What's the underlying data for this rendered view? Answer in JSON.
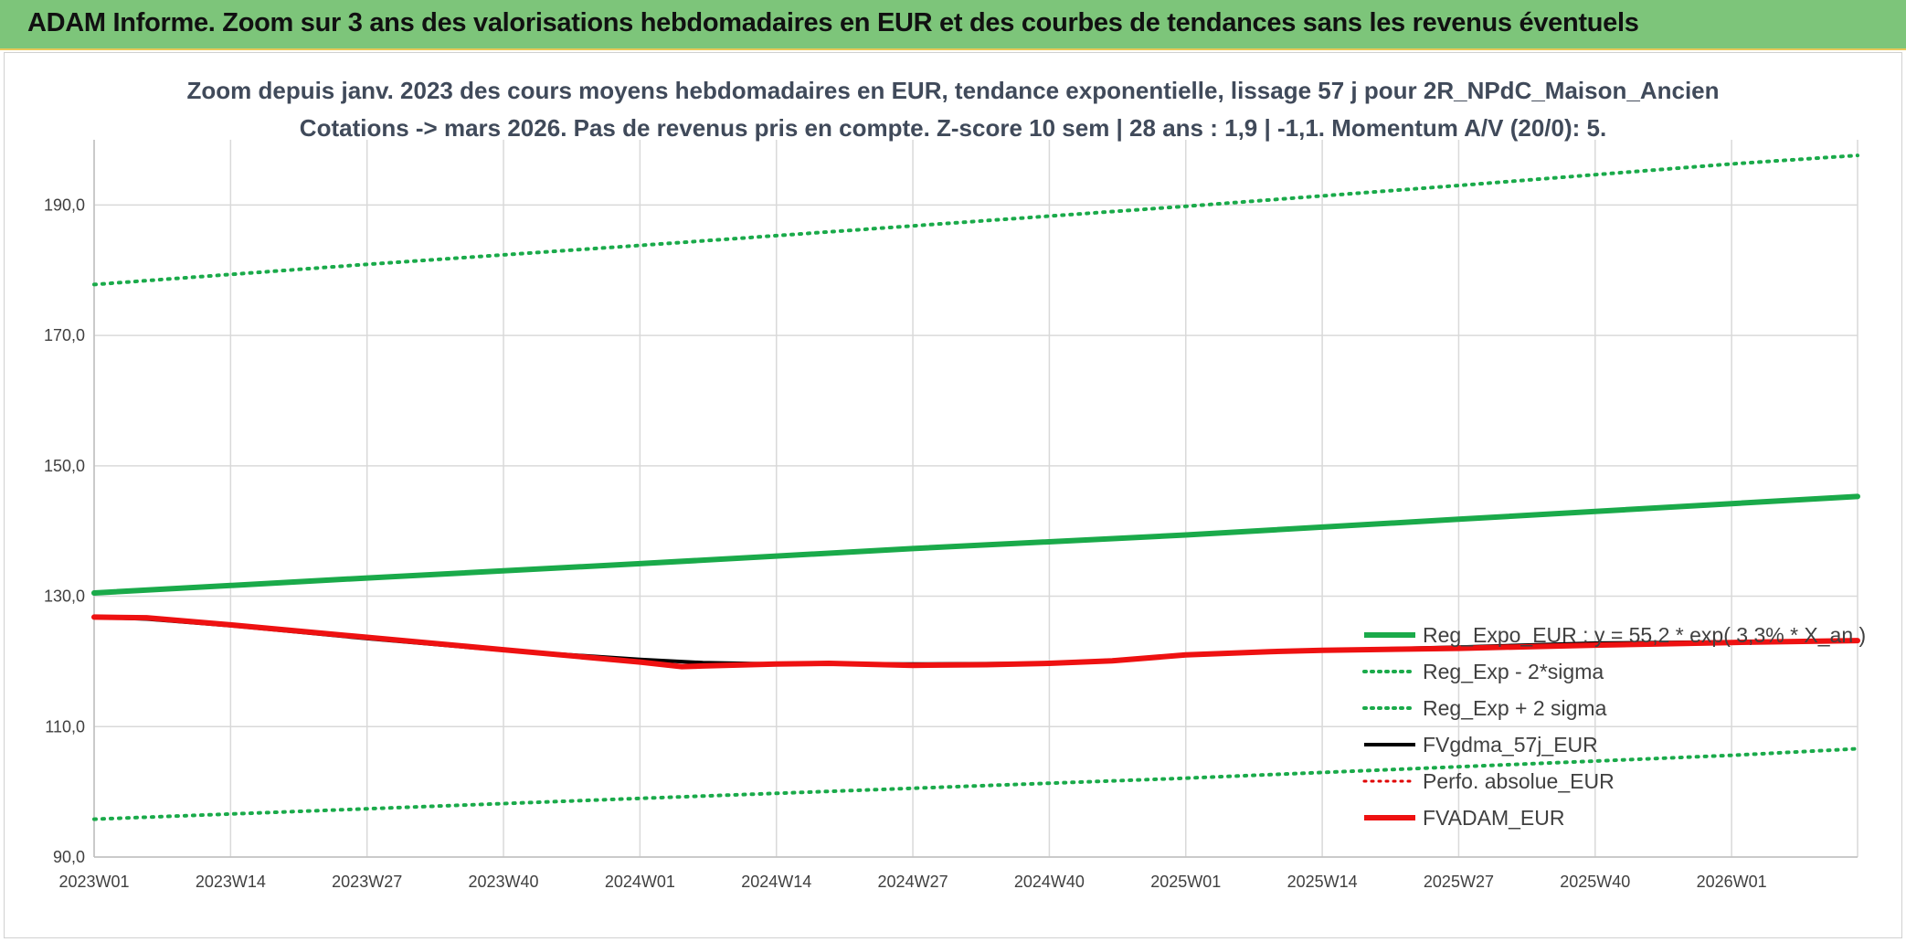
{
  "header": {
    "title": "ADAM Informe. Zoom sur 3 ans des valorisations hebdomadaires en EUR et des courbes de tendances sans les revenus éventuels"
  },
  "chart_data": {
    "type": "line",
    "title_line1": "Zoom depuis janv. 2023 des cours moyens hebdomadaires en EUR, tendance exponentielle, lissage 57 j pour 2R_NPdC_Maison_Ancien",
    "title_line2": "Cotations -> mars 2026. Pas de revenus pris en compte. Z-score 10 sem | 28 ans : 1,9 | -1,1. Momentum A/V (20/0): 5.",
    "x_tick_labels": [
      "2023W01",
      "2023W14",
      "2023W27",
      "2023W40",
      "2024W01",
      "2024W14",
      "2024W27",
      "2024W40",
      "2025W01",
      "2025W14",
      "2025W27",
      "2025W40",
      "2026W01"
    ],
    "x_tick_positions": [
      0,
      13,
      26,
      39,
      52,
      65,
      78,
      91,
      104,
      117,
      130,
      143,
      156
    ],
    "xlim": [
      0,
      168
    ],
    "y_tick_labels": [
      "90,0",
      "110,0",
      "130,0",
      "150,0",
      "170,0",
      "190,0"
    ],
    "y_ticks": [
      90,
      110,
      130,
      150,
      170,
      190
    ],
    "ylim": [
      90,
      200
    ],
    "grid": true,
    "legend_position": "right",
    "series": [
      {
        "name": "Reg_Expo_EUR : y = 55,2 * exp( 3,3% * X_an )",
        "color": "#1aaa4a",
        "style": "solid",
        "width": 6,
        "x": [
          0,
          26,
          52,
          78,
          104,
          130,
          156,
          168
        ],
        "y": [
          130.5,
          132.8,
          135.0,
          137.3,
          139.4,
          141.8,
          144.2,
          145.3
        ]
      },
      {
        "name": "Reg_Exp - 2*sigma",
        "color": "#1aaa4a",
        "style": "dotted",
        "width": 4,
        "x": [
          0,
          52,
          104,
          156,
          168
        ],
        "y": [
          95.8,
          99.0,
          102.1,
          105.6,
          106.6
        ]
      },
      {
        "name": "Reg_Exp + 2 sigma",
        "color": "#1aaa4a",
        "style": "dotted",
        "width": 4,
        "x": [
          0,
          26,
          52,
          78,
          104,
          130,
          156,
          168
        ],
        "y": [
          177.8,
          180.9,
          183.8,
          186.8,
          189.8,
          193.0,
          196.3,
          197.6
        ]
      },
      {
        "name": "FVgdma_57j_EUR",
        "color": "#000000",
        "style": "solid",
        "width": 4,
        "x": [
          0,
          5,
          13,
          26,
          39,
          52,
          58,
          65,
          78,
          91,
          97,
          104,
          112,
          117,
          130,
          143,
          156,
          168
        ],
        "y": [
          126.8,
          126.5,
          125.5,
          123.5,
          121.7,
          120.3,
          119.8,
          119.6,
          119.6,
          119.7,
          120.2,
          121.0,
          121.5,
          121.7,
          122.2,
          122.8,
          123.0,
          123.2
        ]
      },
      {
        "name": "Perfo. absolue_EUR",
        "color": "#e00000",
        "style": "dotted",
        "width": 3,
        "x": [],
        "y": []
      },
      {
        "name": "FVADAM_EUR",
        "color": "#ee1111",
        "style": "solid",
        "width": 6,
        "x": [
          0,
          5,
          13,
          26,
          39,
          52,
          56,
          58,
          65,
          70,
          78,
          85,
          91,
          97,
          104,
          112,
          117,
          130,
          143,
          156,
          168
        ],
        "y": [
          126.8,
          126.7,
          125.6,
          123.7,
          121.8,
          119.9,
          119.2,
          119.3,
          119.6,
          119.7,
          119.4,
          119.5,
          119.7,
          120.1,
          121.0,
          121.5,
          121.7,
          122.0,
          122.5,
          122.9,
          123.2
        ]
      }
    ]
  }
}
